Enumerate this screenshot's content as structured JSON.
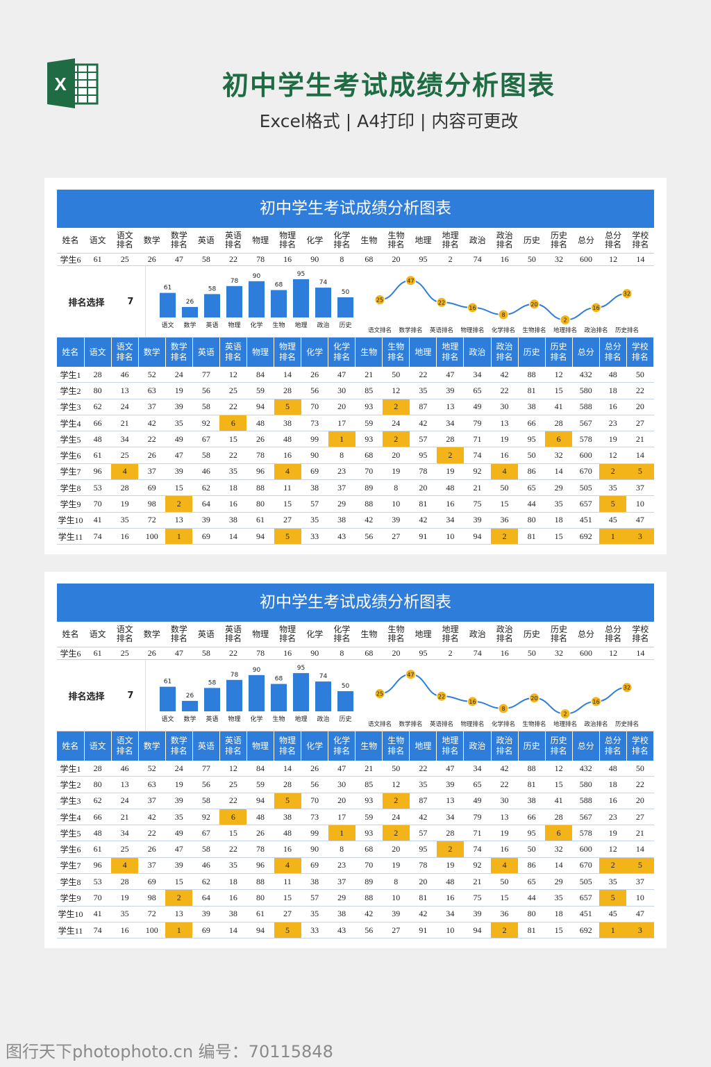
{
  "header": {
    "title": "初中学生考试成绩分析图表",
    "subtitle": "Excel格式 | A4打印 | 内容可更改",
    "logo_icon": "excel-logo-icon",
    "logo_letter": "X",
    "brand_color": "#1f6b43"
  },
  "sheet": {
    "banner_title": "初中学生考试成绩分析图表",
    "columns": [
      "姓名",
      "语文",
      "语文排名",
      "数学",
      "数学排名",
      "英语",
      "英语排名",
      "物理",
      "物理排名",
      "化学",
      "化学排名",
      "生物",
      "生物排名",
      "地理",
      "地理排名",
      "政治",
      "政治排名",
      "历史",
      "历史排名",
      "总分",
      "总分排名",
      "学校排名"
    ],
    "selected_row": [
      "学生6",
      "61",
      "25",
      "26",
      "47",
      "58",
      "22",
      "78",
      "16",
      "90",
      "8",
      "68",
      "20",
      "95",
      "2",
      "74",
      "16",
      "50",
      "32",
      "600",
      "12",
      "14"
    ],
    "rank_select_label": "排名选择",
    "rank_select_value": "7",
    "rows": [
      [
        "学生1",
        "28",
        "46",
        "52",
        "24",
        "77",
        "12",
        "84",
        "14",
        "26",
        "47",
        "21",
        "50",
        "22",
        "47",
        "34",
        "42",
        "88",
        "12",
        "432",
        "48",
        "50"
      ],
      [
        "学生2",
        "80",
        "13",
        "63",
        "19",
        "56",
        "25",
        "59",
        "28",
        "56",
        "30",
        "85",
        "12",
        "35",
        "39",
        "65",
        "22",
        "81",
        "15",
        "580",
        "18",
        "22"
      ],
      [
        "学生3",
        "62",
        "24",
        "37",
        "39",
        "58",
        "22",
        "94",
        "5",
        "70",
        "20",
        "93",
        "2",
        "87",
        "13",
        "49",
        "30",
        "38",
        "41",
        "588",
        "16",
        "20"
      ],
      [
        "学生4",
        "66",
        "21",
        "42",
        "35",
        "92",
        "6",
        "48",
        "38",
        "73",
        "17",
        "59",
        "24",
        "42",
        "34",
        "79",
        "13",
        "66",
        "28",
        "567",
        "23",
        "27"
      ],
      [
        "学生5",
        "48",
        "34",
        "22",
        "49",
        "67",
        "15",
        "26",
        "48",
        "99",
        "1",
        "93",
        "2",
        "57",
        "28",
        "71",
        "19",
        "95",
        "6",
        "578",
        "19",
        "21"
      ],
      [
        "学生6",
        "61",
        "25",
        "26",
        "47",
        "58",
        "22",
        "78",
        "16",
        "90",
        "8",
        "68",
        "20",
        "95",
        "2",
        "74",
        "16",
        "50",
        "32",
        "600",
        "12",
        "14"
      ],
      [
        "学生7",
        "96",
        "4",
        "37",
        "39",
        "46",
        "35",
        "96",
        "4",
        "69",
        "23",
        "70",
        "19",
        "78",
        "19",
        "92",
        "4",
        "86",
        "14",
        "670",
        "2",
        "5"
      ],
      [
        "学生8",
        "53",
        "28",
        "69",
        "15",
        "62",
        "18",
        "88",
        "11",
        "38",
        "37",
        "89",
        "8",
        "20",
        "48",
        "21",
        "50",
        "65",
        "29",
        "505",
        "35",
        "37"
      ],
      [
        "学生9",
        "70",
        "19",
        "98",
        "2",
        "64",
        "16",
        "80",
        "15",
        "57",
        "29",
        "88",
        "10",
        "81",
        "16",
        "75",
        "15",
        "44",
        "35",
        "657",
        "5",
        "10"
      ],
      [
        "学生10",
        "41",
        "35",
        "72",
        "13",
        "39",
        "38",
        "61",
        "27",
        "35",
        "38",
        "42",
        "39",
        "42",
        "34",
        "39",
        "36",
        "80",
        "18",
        "451",
        "45",
        "47"
      ],
      [
        "学生11",
        "74",
        "16",
        "100",
        "1",
        "69",
        "14",
        "94",
        "5",
        "33",
        "43",
        "56",
        "27",
        "91",
        "10",
        "94",
        "2",
        "81",
        "15",
        "692",
        "1",
        "3"
      ]
    ],
    "highlight_color": "#f2b418",
    "accent_color": "#2f7ddb"
  },
  "chart_data": [
    {
      "type": "bar",
      "categories": [
        "语文",
        "数学",
        "英语",
        "物理",
        "化学",
        "生物",
        "地理",
        "政治",
        "历史"
      ],
      "values": [
        61,
        26,
        58,
        78,
        90,
        68,
        95,
        74,
        50
      ],
      "ylim": [
        0,
        100
      ],
      "grid": false,
      "color": "#2f7ddb"
    },
    {
      "type": "line",
      "categories": [
        "语文排名",
        "数学排名",
        "英语排名",
        "物理排名",
        "化学排名",
        "生物排名",
        "地理排名",
        "政治排名",
        "历史排名"
      ],
      "values": [
        25,
        47,
        22,
        16,
        8,
        20,
        2,
        16,
        32
      ],
      "ylim": [
        0,
        50
      ],
      "grid": false,
      "line_color": "#2f7ddb",
      "marker_color": "#f2b418"
    }
  ],
  "watermark": "图行天下photophoto.cn 编号：70115848"
}
